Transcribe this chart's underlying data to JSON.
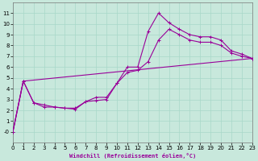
{
  "xlabel": "Windchill (Refroidissement éolien,°C)",
  "xlim": [
    0,
    23
  ],
  "ylim": [
    -1,
    12
  ],
  "xticks": [
    0,
    1,
    2,
    3,
    4,
    5,
    6,
    7,
    8,
    9,
    10,
    11,
    12,
    13,
    14,
    15,
    16,
    17,
    18,
    19,
    20,
    21,
    22,
    23
  ],
  "yticks": [
    0,
    1,
    2,
    3,
    4,
    5,
    6,
    7,
    8,
    9,
    10,
    11
  ],
  "background_color": "#c8e8dc",
  "grid_color": "#a8d8c8",
  "line_color": "#990099",
  "line1_x": [
    0,
    1,
    2,
    3,
    4,
    5,
    6,
    7,
    8,
    9,
    10,
    11,
    12,
    13,
    14,
    15,
    16,
    17,
    18,
    19,
    20,
    21,
    22,
    23
  ],
  "line1_y": [
    0,
    4.7,
    2.7,
    2.5,
    2.3,
    2.2,
    2.1,
    2.8,
    2.9,
    3.0,
    4.5,
    6.0,
    6.0,
    9.3,
    11.0,
    10.1,
    9.5,
    9.0,
    8.8,
    8.8,
    8.5,
    7.5,
    7.2,
    6.8
  ],
  "line2_x": [
    0,
    1,
    2,
    3,
    4,
    5,
    6,
    7,
    8,
    9,
    10,
    11,
    12,
    13,
    14,
    15,
    16,
    17,
    18,
    19,
    20,
    21,
    22,
    23
  ],
  "line2_y": [
    0,
    4.7,
    2.7,
    2.3,
    2.3,
    2.2,
    2.2,
    2.8,
    3.2,
    3.2,
    4.5,
    5.5,
    5.7,
    6.5,
    8.5,
    9.5,
    9.0,
    8.5,
    8.3,
    8.3,
    8.0,
    7.3,
    7.0,
    6.8
  ],
  "line3_x": [
    0,
    1,
    23
  ],
  "line3_y": [
    0,
    4.7,
    6.8
  ]
}
